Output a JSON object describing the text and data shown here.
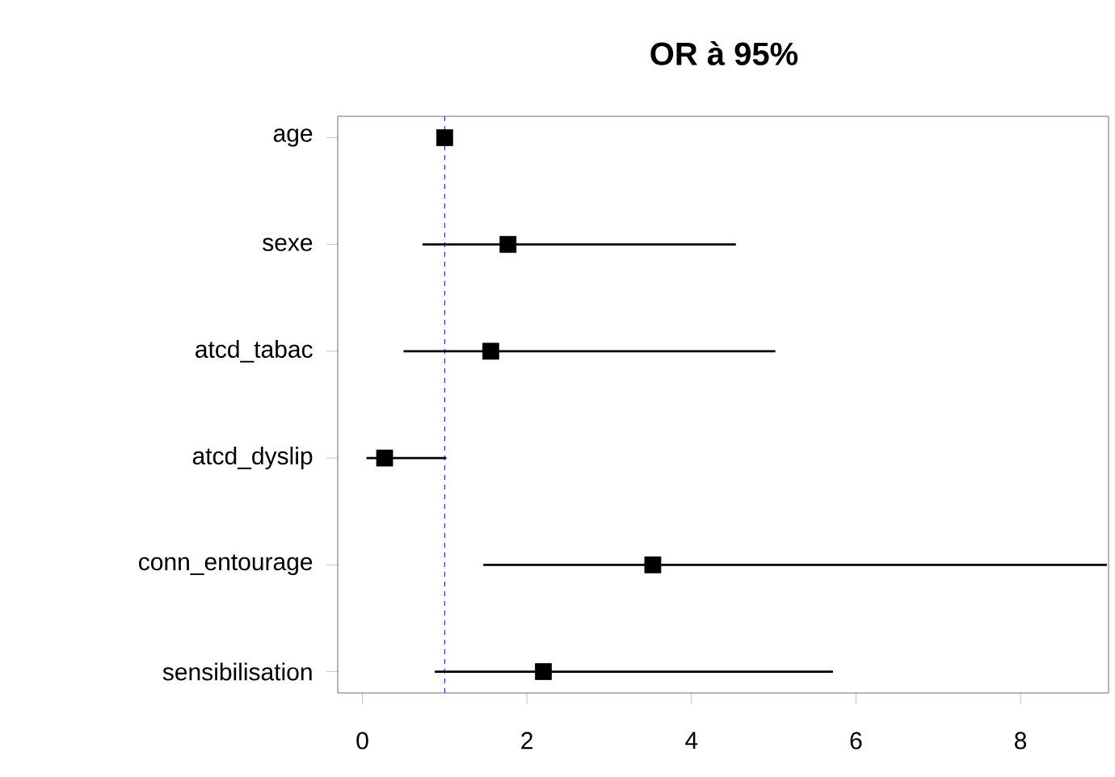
{
  "chart_data": {
    "type": "scatter",
    "orientation": "horizontal",
    "title": "OR à 95%",
    "categories": [
      "age",
      "sexe",
      "atcd_tabac",
      "atcd_dyslip",
      "conn_entourage",
      "sensibilisation"
    ],
    "values": [
      1.0,
      1.77,
      1.56,
      0.27,
      3.53,
      2.2
    ],
    "errors": [
      null,
      [
        0.73,
        4.54
      ],
      [
        0.5,
        5.02
      ],
      [
        0.05,
        1.02
      ],
      [
        1.47,
        9.05
      ],
      [
        0.88,
        5.72
      ]
    ],
    "color": "#000000",
    "marker": "square",
    "grid": false,
    "xlim": [
      -0.3,
      9.07
    ],
    "xticks": [
      0,
      2,
      4,
      6,
      8
    ],
    "ref_lines": [
      {
        "axis": "x",
        "value": 1,
        "color": "#0000ff",
        "line_style": "dashed"
      }
    ]
  }
}
